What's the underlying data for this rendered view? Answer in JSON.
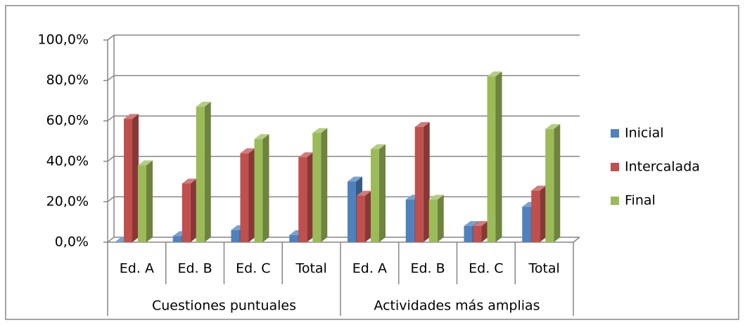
{
  "chart_data": {
    "type": "bar",
    "groups": [
      {
        "name": "Cuestiones puntuales",
        "categories": [
          "Ed. A",
          "Ed. B",
          "Ed. C",
          "Total"
        ]
      },
      {
        "name": "Actividades más amplias",
        "categories": [
          "Ed. A",
          "Ed. B",
          "Ed. C",
          "Total"
        ]
      }
    ],
    "series": [
      {
        "name": "Inicial",
        "color": "#4f81bd",
        "values": [
          0,
          3,
          6,
          3.5,
          30,
          21,
          8,
          17.5
        ]
      },
      {
        "name": "Intercalada",
        "color": "#c0504d",
        "values": [
          61,
          29,
          44,
          42,
          23,
          57,
          8,
          25.5
        ]
      },
      {
        "name": "Final",
        "color": "#9bbb59",
        "values": [
          38,
          67,
          51,
          54,
          46,
          21,
          82,
          56
        ]
      }
    ],
    "ylim": [
      0,
      100
    ],
    "yticks": [
      {
        "value": 0,
        "label": "0,0%"
      },
      {
        "value": 20,
        "label": "20,0%"
      },
      {
        "value": 40,
        "label": "40,0%"
      },
      {
        "value": 60,
        "label": "60,0%"
      },
      {
        "value": 80,
        "label": "80,0%"
      },
      {
        "value": 100,
        "label": "100,0%"
      }
    ],
    "grid": true,
    "legend": "right"
  }
}
